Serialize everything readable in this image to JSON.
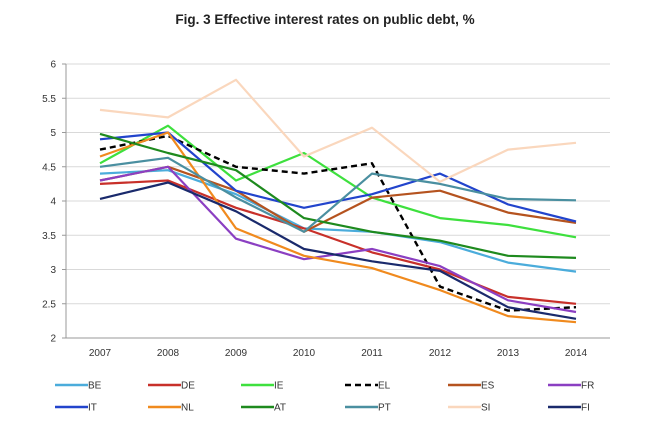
{
  "chart_data": {
    "type": "line",
    "title": "Fig. 3 Effective interest rates on public debt, %",
    "xlabel": "",
    "ylabel": "",
    "x": [
      "2007",
      "2008",
      "2009",
      "2010",
      "2011",
      "2012",
      "2013",
      "2014"
    ],
    "ylim": [
      2,
      6
    ],
    "yticks": [
      "2",
      "2.5",
      "3",
      "3.5",
      "4",
      "4.5",
      "5",
      "5.5",
      "6"
    ],
    "grid": true,
    "legend_position": "bottom",
    "series": [
      {
        "name": "BE",
        "color": "#4BACDB",
        "dash": false,
        "values": [
          4.4,
          4.45,
          4.1,
          3.6,
          3.55,
          3.4,
          3.1,
          2.97
        ]
      },
      {
        "name": "DE",
        "color": "#C8302A",
        "dash": false,
        "values": [
          4.25,
          4.3,
          3.9,
          3.6,
          3.25,
          3.0,
          2.6,
          2.5
        ]
      },
      {
        "name": "IE",
        "color": "#3EE03E",
        "dash": false,
        "values": [
          4.55,
          5.1,
          4.3,
          4.7,
          4.05,
          3.75,
          3.65,
          3.47
        ]
      },
      {
        "name": "EL",
        "color": "#000000",
        "dash": true,
        "values": [
          4.75,
          4.95,
          4.5,
          4.4,
          4.55,
          2.75,
          2.4,
          2.45
        ]
      },
      {
        "name": "ES",
        "color": "#B5531F",
        "dash": false,
        "values": [
          4.3,
          4.5,
          4.15,
          3.55,
          4.05,
          4.15,
          3.83,
          3.68
        ]
      },
      {
        "name": "FR",
        "color": "#8B3FC2",
        "dash": false,
        "values": [
          4.3,
          4.5,
          3.45,
          3.15,
          3.3,
          3.05,
          2.55,
          2.38
        ]
      },
      {
        "name": "IT",
        "color": "#2244CC",
        "dash": false,
        "values": [
          4.9,
          5.0,
          4.15,
          3.9,
          4.1,
          4.4,
          3.95,
          3.7
        ]
      },
      {
        "name": "NL",
        "color": "#F08A1E",
        "dash": false,
        "values": [
          4.65,
          5.0,
          3.6,
          3.2,
          3.02,
          2.7,
          2.32,
          2.23
        ]
      },
      {
        "name": "AT",
        "color": "#1E8A1E",
        "dash": false,
        "values": [
          4.98,
          4.7,
          4.45,
          3.75,
          3.55,
          3.42,
          3.2,
          3.17
        ]
      },
      {
        "name": "PT",
        "color": "#4A8FA0",
        "dash": false,
        "values": [
          4.5,
          4.63,
          4.05,
          3.55,
          4.4,
          4.25,
          4.03,
          4.01
        ]
      },
      {
        "name": "SI",
        "color": "#FAD7BD",
        "dash": false,
        "values": [
          5.33,
          5.22,
          5.77,
          4.65,
          5.07,
          4.28,
          4.75,
          4.85
        ]
      },
      {
        "name": "FI",
        "color": "#1A2A6C",
        "dash": false,
        "values": [
          4.03,
          4.27,
          3.85,
          3.3,
          3.12,
          2.98,
          2.45,
          2.28
        ]
      }
    ]
  }
}
